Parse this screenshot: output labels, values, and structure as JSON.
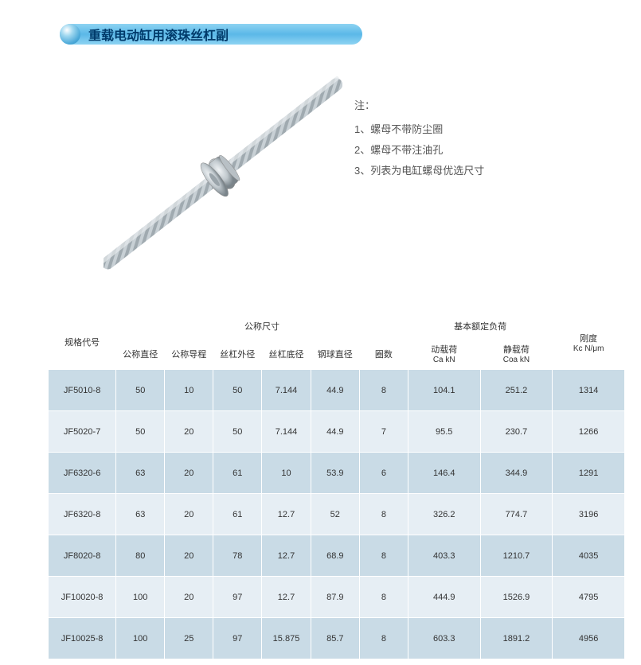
{
  "title": "重载电动缸用滚珠丝杠副",
  "notes": {
    "heading": "注：",
    "items": [
      "1、螺母不带防尘圈",
      "2、螺母不带注油孔",
      "3、列表为电缸螺母优选尺寸"
    ]
  },
  "table": {
    "header_group_dims": "公称尺寸",
    "header_group_load": "基本额定负荷",
    "header_model": "规格代号",
    "header_stiffness": "刚度",
    "header_stiffness_unit": "Kc N/μm",
    "dim_cols": [
      "公称直径",
      "公称导程",
      "丝杠外径",
      "丝杠底径",
      "钢球直径",
      "圈数"
    ],
    "load_cols": [
      {
        "label": "动载荷",
        "sub": "Ca  kN"
      },
      {
        "label": "静载荷",
        "sub": "Coa  kN"
      }
    ],
    "rows": [
      {
        "model": "JF5010-8",
        "dims": [
          "50",
          "10",
          "50",
          "7.144",
          "44.9",
          "8"
        ],
        "loads": [
          "104.1",
          "251.2"
        ],
        "stiff": "1314"
      },
      {
        "model": "JF5020-7",
        "dims": [
          "50",
          "20",
          "50",
          "7.144",
          "44.9",
          "7"
        ],
        "loads": [
          "95.5",
          "230.7"
        ],
        "stiff": "1266"
      },
      {
        "model": "JF6320-6",
        "dims": [
          "63",
          "20",
          "61",
          "10",
          "53.9",
          "6"
        ],
        "loads": [
          "146.4",
          "344.9"
        ],
        "stiff": "1291"
      },
      {
        "model": "JF6320-8",
        "dims": [
          "63",
          "20",
          "61",
          "12.7",
          "52",
          "8"
        ],
        "loads": [
          "326.2",
          "774.7"
        ],
        "stiff": "3196"
      },
      {
        "model": "JF8020-8",
        "dims": [
          "80",
          "20",
          "78",
          "12.7",
          "68.9",
          "8"
        ],
        "loads": [
          "403.3",
          "1210.7"
        ],
        "stiff": "4035"
      },
      {
        "model": "JF10020-8",
        "dims": [
          "100",
          "20",
          "97",
          "12.7",
          "87.9",
          "8"
        ],
        "loads": [
          "444.9",
          "1526.9"
        ],
        "stiff": "4795"
      },
      {
        "model": "JF10025-8",
        "dims": [
          "100",
          "25",
          "97",
          "15.875",
          "85.7",
          "8"
        ],
        "loads": [
          "603.3",
          "1891.2"
        ],
        "stiff": "4956"
      }
    ]
  },
  "image": {
    "shaft_color_light": "#d8dde0",
    "shaft_color_dark": "#9aa4aa",
    "thread_color": "#b5bec4",
    "nut_color_light": "#e5e9ec",
    "nut_color_dark": "#8a949a"
  }
}
